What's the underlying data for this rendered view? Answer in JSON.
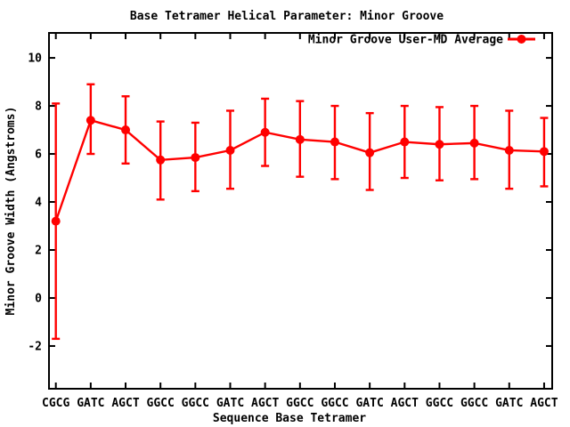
{
  "window": {
    "background_color": "#ffffff"
  },
  "chart_data": {
    "type": "line",
    "title": "Base Tetramer Helical Parameter: Minor Groove",
    "xlabel": "Sequence Base Tetramer",
    "ylabel": "Minor Groove Width (Angstroms)",
    "categories": [
      "CGCG",
      "GATC",
      "AGCT",
      "GGCC",
      "GGCC",
      "GATC",
      "AGCT",
      "GGCC",
      "GGCC",
      "GATC",
      "AGCT",
      "GGCC",
      "GGCC",
      "GATC",
      "AGCT"
    ],
    "series": [
      {
        "name": "Minor Groove User-MD Average",
        "color": "#ff0000",
        "marker": "filled-circle",
        "values": [
          3.2,
          7.4,
          7.0,
          5.75,
          5.85,
          6.15,
          6.9,
          6.6,
          6.5,
          6.05,
          6.5,
          6.4,
          6.45,
          6.15,
          6.1
        ],
        "error_low": [
          -1.7,
          6.0,
          5.6,
          4.1,
          4.45,
          4.55,
          5.5,
          5.05,
          4.95,
          4.5,
          5.0,
          4.9,
          4.95,
          4.55,
          4.65
        ],
        "error_high": [
          8.1,
          8.9,
          8.4,
          7.35,
          7.3,
          7.8,
          8.3,
          8.2,
          8.0,
          7.7,
          8.0,
          7.95,
          8.0,
          7.8,
          7.5
        ]
      }
    ],
    "y_ticks": [
      -2,
      0,
      2,
      4,
      6,
      8,
      10
    ],
    "ylim": [
      -3.78,
      11.04
    ],
    "grid": false,
    "legend_position": "top-right-inside",
    "axis_color": "#000000",
    "text_color": "#000000"
  }
}
